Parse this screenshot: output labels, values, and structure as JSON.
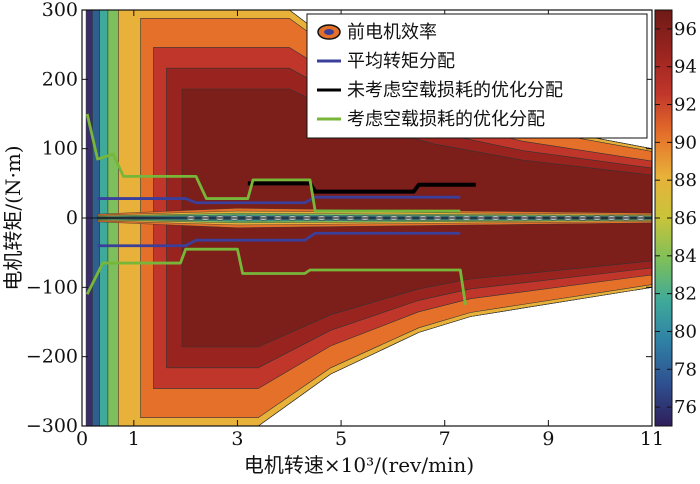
{
  "chart_data": {
    "type": "contour",
    "title": "",
    "xlabel": "电机转速×10³/(rev/min)",
    "ylabel": "电机转矩/(N·m)",
    "xlim": [
      0,
      11
    ],
    "ylim": [
      -300,
      300
    ],
    "xticks": [
      0,
      1,
      3,
      5,
      7,
      9,
      11
    ],
    "yticks": [
      300,
      200,
      100,
      0,
      -100,
      -200,
      -300
    ],
    "colorbar": {
      "min": 75,
      "max": 97,
      "ticks": [
        96,
        94,
        92,
        90,
        88,
        86,
        84,
        82,
        80,
        78,
        76
      ]
    },
    "efficiency_bands": [
      {
        "level": 76,
        "color": "#3a2d6b"
      },
      {
        "level": 80,
        "color": "#2f5f8f"
      },
      {
        "level": 84,
        "color": "#3fa99a"
      },
      {
        "level": 87,
        "color": "#7dbf5a"
      },
      {
        "level": 90,
        "color": "#e8b13a"
      },
      {
        "level": 92,
        "color": "#e5702a"
      },
      {
        "level": 94,
        "color": "#c0362b"
      },
      {
        "level": 95,
        "color": "#99241f"
      },
      {
        "level": 96,
        "color": "#7c1e19"
      }
    ],
    "legend": {
      "placement": "top-right",
      "entries": [
        {
          "label": "前电机效率",
          "style": "contour-marker"
        },
        {
          "label": "平均转矩分配",
          "color": "#3b3f9a"
        },
        {
          "label": "未考虑空载损耗的优化分配",
          "color": "#000000"
        },
        {
          "label": "考虑空载损耗的优化分配",
          "color": "#78b63a"
        }
      ]
    },
    "series": [
      {
        "name": "平均转矩分配",
        "color": "#3b3f9a",
        "upper_steps": [
          [
            0.3,
            28
          ],
          [
            2.0,
            28
          ],
          [
            2.2,
            22
          ],
          [
            4.3,
            22
          ],
          [
            4.5,
            30
          ],
          [
            7.3,
            30
          ]
        ],
        "lower_steps": [
          [
            0.3,
            -40
          ],
          [
            2.0,
            -40
          ],
          [
            2.2,
            -32
          ],
          [
            4.3,
            -32
          ],
          [
            4.5,
            -22
          ],
          [
            7.3,
            -22
          ]
        ]
      },
      {
        "name": "未考虑空载损耗的优化分配",
        "color": "#000000",
        "upper_steps": [
          [
            3.2,
            50
          ],
          [
            4.4,
            50
          ],
          [
            4.5,
            38
          ],
          [
            6.4,
            38
          ],
          [
            6.5,
            48
          ],
          [
            7.6,
            48
          ]
        ],
        "lower_steps": []
      },
      {
        "name": "考虑空载损耗的优化分配",
        "color": "#78b63a",
        "upper_steps": [
          [
            0.1,
            150
          ],
          [
            0.3,
            85
          ],
          [
            0.6,
            92
          ],
          [
            0.8,
            60
          ],
          [
            2.2,
            60
          ],
          [
            2.4,
            28
          ],
          [
            3.2,
            28
          ],
          [
            3.3,
            55
          ],
          [
            4.4,
            55
          ],
          [
            4.5,
            10
          ],
          [
            7.3,
            10
          ]
        ],
        "lower_steps": [
          [
            0.1,
            -110
          ],
          [
            0.4,
            -65
          ],
          [
            1.9,
            -65
          ],
          [
            2.0,
            -45
          ],
          [
            3.0,
            -45
          ],
          [
            3.1,
            -80
          ],
          [
            4.3,
            -80
          ],
          [
            4.4,
            -75
          ],
          [
            7.3,
            -75
          ],
          [
            7.4,
            -125
          ]
        ]
      }
    ]
  }
}
